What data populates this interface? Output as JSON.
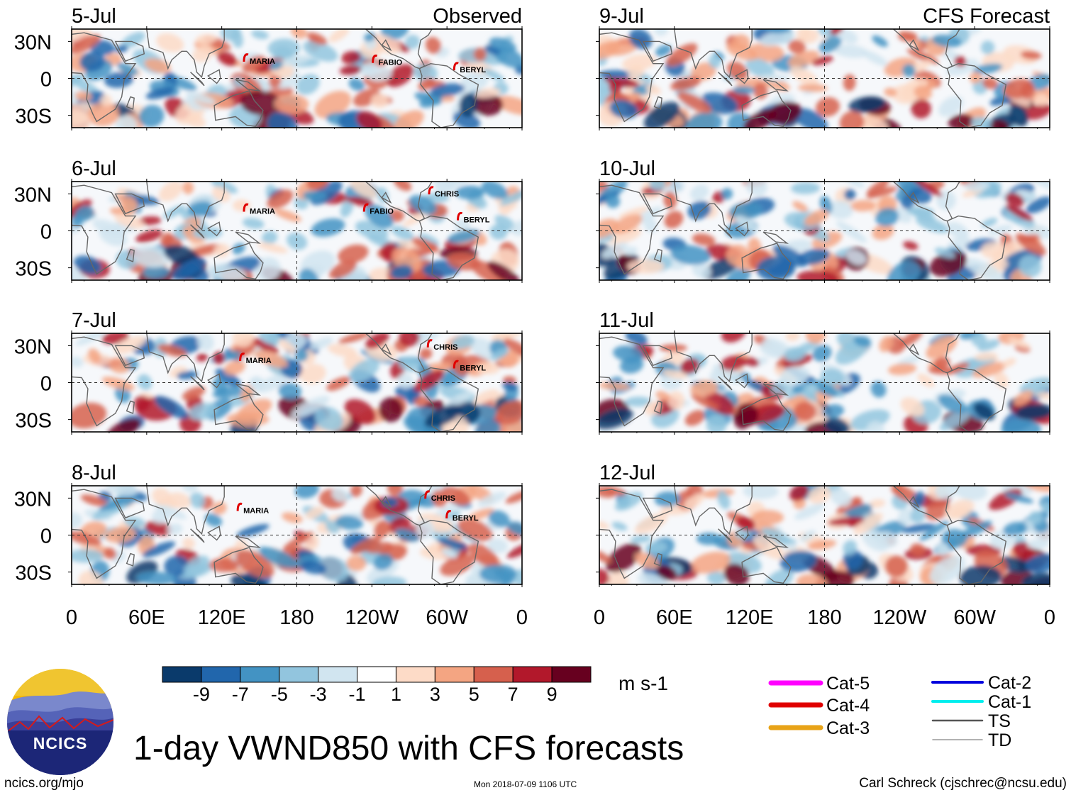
{
  "page": {
    "title": "1-day VWND850 with CFS forecasts",
    "units": "m s-1",
    "footer_left": "ncics.org/mjo",
    "footer_center": "Mon 2018-07-09 1106 UTC",
    "footer_right": "Carl Schreck (cjschrec@ncsu.edu)",
    "logo_text": "NCICS",
    "colors": {
      "neg_strong": "#0b3d6e",
      "pos_strong": "#7a0a1a",
      "land_outline": "#666666"
    }
  },
  "chart_data": {
    "type": "heatmap",
    "title": "1-day VWND850 with CFS forecasts",
    "variable": "VWND850",
    "units": "m s-1",
    "x_ticks": [
      "0",
      "60E",
      "120E",
      "180",
      "120W",
      "60W",
      "0"
    ],
    "x_tick_values": [
      0,
      60,
      120,
      180,
      240,
      300,
      360
    ],
    "y_ticks": [
      "30N",
      "0",
      "30S"
    ],
    "y_tick_values": [
      30,
      0,
      -30
    ],
    "xlim": [
      0,
      360
    ],
    "ylim": [
      -40,
      40
    ],
    "colorbar": {
      "labels": [
        "-9",
        "-7",
        "-5",
        "-3",
        "-1",
        "1",
        "3",
        "5",
        "7",
        "9"
      ],
      "colors": [
        "#0a3a6b",
        "#2166ac",
        "#4393c3",
        "#92c5de",
        "#d1e5f0",
        "#ffffff",
        "#fddbc7",
        "#f4a582",
        "#d6604d",
        "#b2182b",
        "#67001f"
      ]
    },
    "columns": [
      {
        "label": "Observed",
        "panels": [
          {
            "date": "5-Jul",
            "storms": [
              {
                "name": "MARIA",
                "lon": 140,
                "lat": 17
              },
              {
                "name": "FABIO",
                "lon": 243,
                "lat": 16
              },
              {
                "name": "BERYL",
                "lon": 308,
                "lat": 10
              }
            ]
          },
          {
            "date": "6-Jul",
            "storms": [
              {
                "name": "MARIA",
                "lon": 140,
                "lat": 19
              },
              {
                "name": "FABIO",
                "lon": 236,
                "lat": 19
              },
              {
                "name": "CHRIS",
                "lon": 288,
                "lat": 33
              },
              {
                "name": "BERYL",
                "lon": 311,
                "lat": 12
              }
            ]
          },
          {
            "date": "7-Jul",
            "storms": [
              {
                "name": "MARIA",
                "lon": 137,
                "lat": 21
              },
              {
                "name": "CHRIS",
                "lon": 287,
                "lat": 32
              },
              {
                "name": "BERYL",
                "lon": 308,
                "lat": 15
              }
            ]
          },
          {
            "date": "8-Jul",
            "storms": [
              {
                "name": "MARIA",
                "lon": 135,
                "lat": 23
              },
              {
                "name": "CHRIS",
                "lon": 285,
                "lat": 33
              },
              {
                "name": "BERYL",
                "lon": 302,
                "lat": 17
              }
            ]
          }
        ]
      },
      {
        "label": "CFS Forecast",
        "panels": [
          {
            "date": "9-Jul",
            "storms": []
          },
          {
            "date": "10-Jul",
            "storms": []
          },
          {
            "date": "11-Jul",
            "storms": []
          },
          {
            "date": "12-Jul",
            "storms": []
          }
        ]
      }
    ],
    "track_legend": [
      {
        "label": "Cat-5",
        "color": "#ff00ff",
        "width": 7
      },
      {
        "label": "Cat-4",
        "color": "#e00000",
        "width": 7
      },
      {
        "label": "Cat-3",
        "color": "#e8a317",
        "width": 7
      },
      {
        "label": "Cat-2",
        "color": "#0000dd",
        "width": 4
      },
      {
        "label": "Cat-1",
        "color": "#00eeee",
        "width": 4
      },
      {
        "label": "TS",
        "color": "#555555",
        "width": 2.5
      },
      {
        "label": "TD",
        "color": "#999999",
        "width": 1.5
      }
    ]
  }
}
